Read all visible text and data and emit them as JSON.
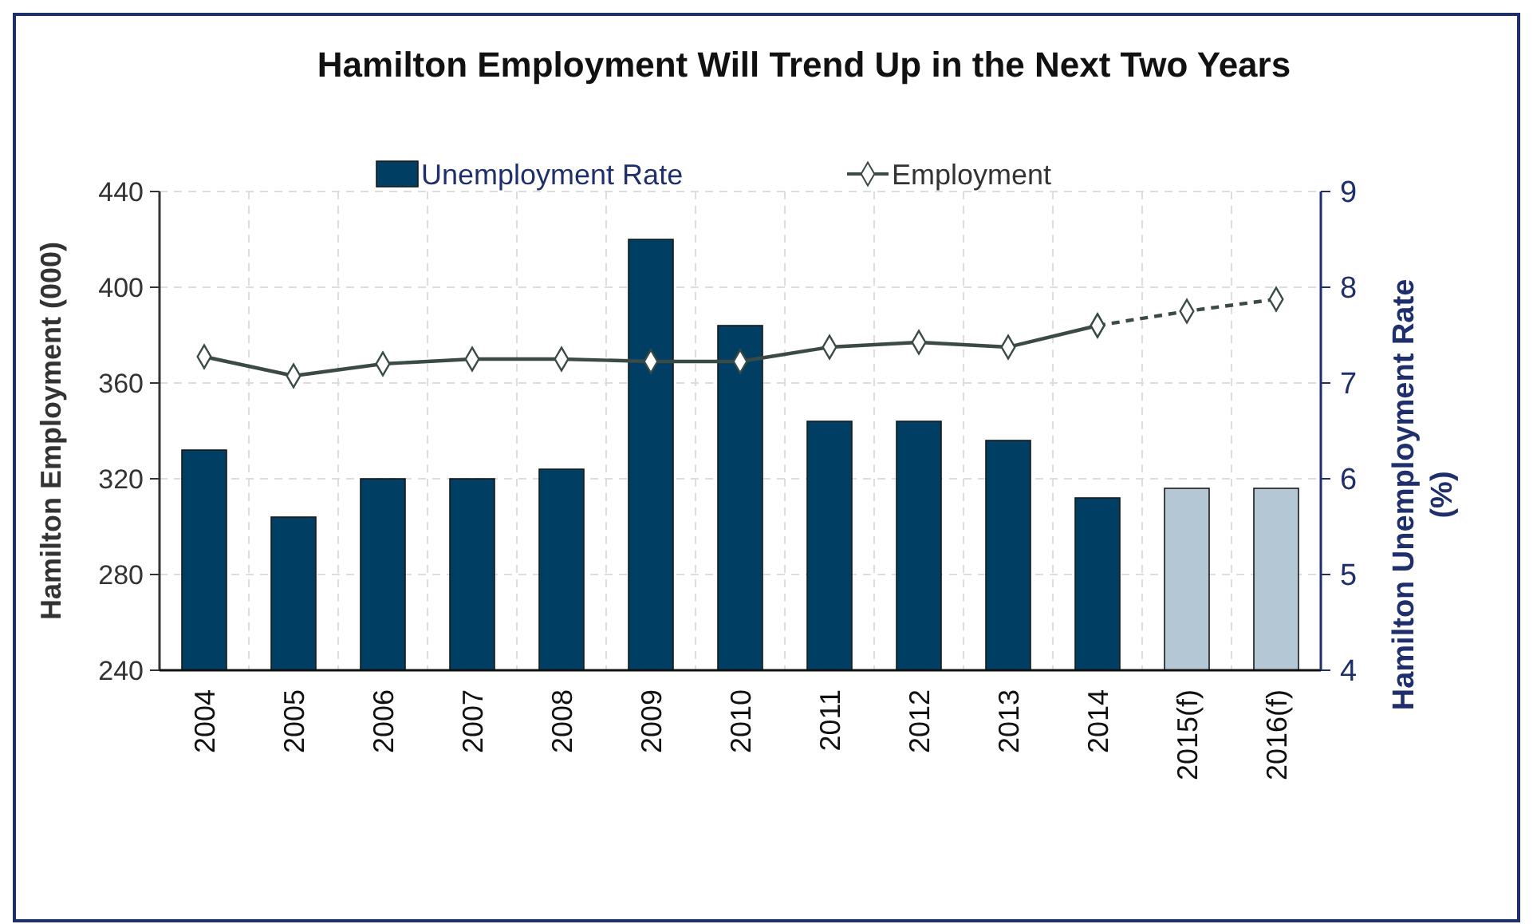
{
  "chart_data": {
    "type": "bar",
    "title": "Hamilton Employment Will Trend Up in the Next Two Years",
    "ylabel": "Hamilton Employment (000)",
    "y2label": "Hamilton Unemployment Rate (%)",
    "categories": [
      "2004",
      "2005",
      "2006",
      "2007",
      "2008",
      "2009",
      "2010",
      "2011",
      "2012",
      "2013",
      "2014",
      "2015(f)",
      "2016(f)"
    ],
    "series": [
      {
        "name": "Unemployment Rate",
        "axis": "y2",
        "color": "#003f63",
        "colors": [
          "#003f63",
          "#003f63",
          "#003f63",
          "#003f63",
          "#003f63",
          "#003f63",
          "#003f63",
          "#003f63",
          "#003f63",
          "#003f63",
          "#003f63",
          "#b4c7d4",
          "#b4c7d4"
        ],
        "values": [
          6.3,
          5.6,
          6.0,
          6.0,
          6.1,
          8.5,
          7.6,
          6.6,
          6.6,
          6.4,
          5.8,
          5.9,
          5.9
        ]
      },
      {
        "name": "Employment",
        "type": "line",
        "axis": "y",
        "color": "#3a4a44",
        "marker": "diamond",
        "line_style": "solid",
        "values": [
          371,
          363,
          368,
          370,
          370,
          369,
          369,
          375,
          377,
          375,
          384,
          null,
          null
        ]
      },
      {
        "type": "line",
        "axis": "y",
        "color": "#3a4a44",
        "marker": "diamond",
        "line_style": "dashed",
        "values": [
          null,
          null,
          null,
          null,
          null,
          null,
          null,
          null,
          null,
          null,
          384,
          390,
          395
        ]
      }
    ],
    "ylim": [
      240,
      440
    ],
    "yticks": [
      240,
      280,
      320,
      360,
      400,
      440
    ],
    "y2lim": [
      4,
      9
    ],
    "y2ticks": [
      4,
      5,
      6,
      7,
      8,
      9
    ],
    "grid": true,
    "legend": "top"
  }
}
